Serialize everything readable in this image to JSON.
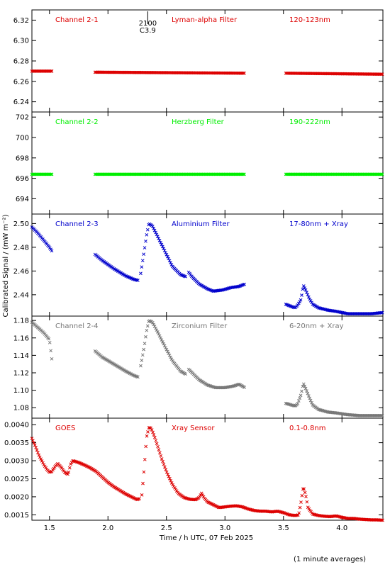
{
  "chart_data": {
    "type": "scatter",
    "x_axis": {
      "label": "Time / h UTC, 07 Feb 2025",
      "range": [
        1.35,
        4.35
      ],
      "ticks": [
        1.5,
        2.0,
        2.5,
        3.0,
        3.5,
        4.0
      ],
      "tick_labels": [
        "1.5",
        "2.0",
        "2.5",
        "3.0",
        "3.5",
        "4.0"
      ]
    },
    "y_axis_label": "Calibrated Signal / (mW m⁻²)",
    "footnote": "(1 minute averages)",
    "marker_annotation": {
      "x": 2.34,
      "lines": [
        "2100",
        "C3.9"
      ]
    },
    "panels": [
      {
        "channel": "Channel 2-1",
        "filter": "Lyman-alpha Filter",
        "band": "120-123nm",
        "color": "#dd0000",
        "ylim": [
          6.23,
          6.33
        ],
        "yticks": [
          6.24,
          6.26,
          6.28,
          6.3,
          6.32
        ],
        "ytick_labels": [
          "6.24",
          "6.26",
          "6.28",
          "6.30",
          "6.32"
        ],
        "segments": [
          {
            "points": [
              [
                1.35,
                6.27
              ],
              [
                1.52,
                6.27
              ]
            ]
          },
          {
            "points": [
              [
                1.89,
                6.269
              ],
              [
                3.17,
                6.268
              ]
            ]
          },
          {
            "points": [
              [
                3.52,
                6.268
              ],
              [
                4.35,
                6.267
              ]
            ]
          }
        ]
      },
      {
        "channel": "Channel 2-2",
        "filter": "Herzberg Filter",
        "band": "190-222nm",
        "color": "#00ee00",
        "ylim": [
          692.5,
          702.5
        ],
        "yticks": [
          694,
          696,
          698,
          700,
          702
        ],
        "ytick_labels": [
          "694",
          "696",
          "698",
          "700",
          "702"
        ],
        "segments": [
          {
            "points": [
              [
                1.35,
                696.4
              ],
              [
                1.52,
                696.4
              ]
            ]
          },
          {
            "points": [
              [
                1.89,
                696.4
              ],
              [
                3.17,
                696.4
              ]
            ]
          },
          {
            "points": [
              [
                3.52,
                696.4
              ],
              [
                4.35,
                696.4
              ]
            ]
          }
        ]
      },
      {
        "channel": "Channel 2-3",
        "filter": "Aluminium Filter",
        "band": "17-80nm + Xray",
        "color": "#0000cc",
        "ylim": [
          2.422,
          2.508
        ],
        "yticks": [
          2.44,
          2.46,
          2.48,
          2.5
        ],
        "ytick_labels": [
          "2.44",
          "2.46",
          "2.48",
          "2.50"
        ],
        "segments": [
          {
            "points": [
              [
                1.35,
                2.497
              ],
              [
                1.4,
                2.492
              ],
              [
                1.45,
                2.486
              ],
              [
                1.5,
                2.48
              ],
              [
                1.52,
                2.477
              ]
            ]
          },
          {
            "points": [
              [
                1.89,
                2.474
              ],
              [
                1.95,
                2.469
              ],
              [
                2.05,
                2.462
              ],
              [
                2.15,
                2.456
              ],
              [
                2.22,
                2.453
              ],
              [
                2.26,
                2.452
              ]
            ]
          },
          {
            "points": [
              [
                2.28,
                2.458
              ],
              [
                2.31,
                2.477
              ],
              [
                2.33,
                2.49
              ],
              [
                2.35,
                2.5
              ],
              [
                2.38,
                2.498
              ],
              [
                2.42,
                2.49
              ],
              [
                2.48,
                2.478
              ],
              [
                2.55,
                2.464
              ],
              [
                2.62,
                2.457
              ],
              [
                2.67,
                2.455
              ]
            ]
          },
          {
            "points": [
              [
                2.69,
                2.459
              ],
              [
                2.72,
                2.455
              ],
              [
                2.78,
                2.449
              ],
              [
                2.85,
                2.445
              ],
              [
                2.9,
                2.443
              ],
              [
                2.98,
                2.444
              ],
              [
                3.05,
                2.446
              ],
              [
                3.12,
                2.447
              ],
              [
                3.17,
                2.449
              ]
            ]
          },
          {
            "points": [
              [
                3.52,
                2.432
              ],
              [
                3.57,
                2.43
              ],
              [
                3.6,
                2.429
              ],
              [
                3.62,
                2.431
              ],
              [
                3.65,
                2.436
              ],
              [
                3.67,
                2.448
              ],
              [
                3.69,
                2.444
              ],
              [
                3.72,
                2.437
              ],
              [
                3.75,
                2.432
              ],
              [
                3.8,
                2.429
              ],
              [
                3.88,
                2.427
              ],
              [
                3.95,
                2.426
              ],
              [
                4.05,
                2.424
              ],
              [
                4.15,
                2.424
              ],
              [
                4.25,
                2.424
              ],
              [
                4.35,
                2.425
              ]
            ]
          }
        ]
      },
      {
        "channel": "Channel 2-4",
        "filter": "Zirconium Filter",
        "band": "6-20nm + Xray",
        "color": "#777777",
        "ylim": [
          1.068,
          1.185
        ],
        "yticks": [
          1.08,
          1.1,
          1.12,
          1.14,
          1.16,
          1.18
        ],
        "ytick_labels": [
          "1.08",
          "1.10",
          "1.12",
          "1.14",
          "1.16",
          "1.18"
        ],
        "segments": [
          {
            "points": [
              [
                1.35,
                1.178
              ],
              [
                1.4,
                1.172
              ],
              [
                1.45,
                1.166
              ],
              [
                1.5,
                1.158
              ],
              [
                1.52,
                1.136
              ]
            ]
          },
          {
            "points": [
              [
                1.89,
                1.145
              ],
              [
                1.95,
                1.138
              ],
              [
                2.05,
                1.13
              ],
              [
                2.15,
                1.122
              ],
              [
                2.22,
                1.117
              ],
              [
                2.26,
                1.115
              ]
            ]
          },
          {
            "points": [
              [
                2.28,
                1.128
              ],
              [
                2.31,
                1.15
              ],
              [
                2.33,
                1.168
              ],
              [
                2.35,
                1.18
              ],
              [
                2.38,
                1.178
              ],
              [
                2.42,
                1.168
              ],
              [
                2.48,
                1.152
              ],
              [
                2.55,
                1.134
              ],
              [
                2.62,
                1.122
              ],
              [
                2.67,
                1.118
              ]
            ]
          },
          {
            "points": [
              [
                2.69,
                1.124
              ],
              [
                2.72,
                1.12
              ],
              [
                2.78,
                1.112
              ],
              [
                2.85,
                1.106
              ],
              [
                2.92,
                1.103
              ],
              [
                3.0,
                1.103
              ],
              [
                3.08,
                1.105
              ],
              [
                3.12,
                1.107
              ],
              [
                3.17,
                1.103
              ]
            ]
          },
          {
            "points": [
              [
                3.52,
                1.085
              ],
              [
                3.57,
                1.083
              ],
              [
                3.6,
                1.082
              ],
              [
                3.62,
                1.084
              ],
              [
                3.65,
                1.095
              ],
              [
                3.67,
                1.108
              ],
              [
                3.69,
                1.102
              ],
              [
                3.72,
                1.092
              ],
              [
                3.75,
                1.083
              ],
              [
                3.8,
                1.078
              ],
              [
                3.88,
                1.075
              ],
              [
                3.95,
                1.074
              ],
              [
                4.05,
                1.072
              ],
              [
                4.15,
                1.071
              ],
              [
                4.25,
                1.071
              ],
              [
                4.35,
                1.071
              ]
            ]
          }
        ]
      },
      {
        "channel": "GOES",
        "filter": "Xray Sensor",
        "band": "0.1-0.8nm",
        "color": "#dd0000",
        "ylim": [
          0.00135,
          0.00418
        ],
        "yticks": [
          0.0015,
          0.002,
          0.0025,
          0.003,
          0.0035,
          0.004
        ],
        "ytick_labels": [
          "0.0015",
          "0.0020",
          "0.0025",
          "0.0030",
          "0.0035",
          "0.0040"
        ],
        "segments": [
          {
            "points": [
              [
                1.35,
                0.00362
              ],
              [
                1.38,
                0.0034
              ],
              [
                1.41,
                0.00315
              ],
              [
                1.45,
                0.0029
              ],
              [
                1.48,
                0.00275
              ],
              [
                1.5,
                0.00268
              ],
              [
                1.52,
                0.0027
              ],
              [
                1.55,
                0.00285
              ],
              [
                1.57,
                0.00292
              ],
              [
                1.6,
                0.00282
              ],
              [
                1.63,
                0.00268
              ],
              [
                1.66,
                0.00262
              ],
              [
                1.68,
                0.0029
              ],
              [
                1.7,
                0.003
              ],
              [
                1.75,
                0.00295
              ],
              [
                1.8,
                0.00288
              ],
              [
                1.85,
                0.0028
              ],
              [
                1.9,
                0.0027
              ],
              [
                1.95,
                0.00255
              ],
              [
                2.0,
                0.0024
              ],
              [
                2.05,
                0.00228
              ],
              [
                2.1,
                0.00218
              ],
              [
                2.15,
                0.00208
              ],
              [
                2.2,
                0.002
              ],
              [
                2.25,
                0.00192
              ],
              [
                2.27,
                0.00195
              ]
            ]
          },
          {
            "points": [
              [
                2.29,
                0.00205
              ],
              [
                2.31,
                0.0028
              ],
              [
                2.33,
                0.00365
              ],
              [
                2.35,
                0.00392
              ],
              [
                2.37,
                0.0039
              ],
              [
                2.4,
                0.00365
              ],
              [
                2.43,
                0.00335
              ],
              [
                2.46,
                0.00305
              ],
              [
                2.5,
                0.0027
              ],
              [
                2.55,
                0.00235
              ],
              [
                2.6,
                0.0021
              ],
              [
                2.65,
                0.00198
              ],
              [
                2.7,
                0.00193
              ],
              [
                2.75,
                0.00192
              ],
              [
                2.78,
                0.00198
              ],
              [
                2.8,
                0.0021
              ],
              [
                2.82,
                0.00198
              ],
              [
                2.85,
                0.00186
              ],
              [
                2.9,
                0.00178
              ],
              [
                2.95,
                0.0017
              ],
              [
                3.0,
                0.00172
              ],
              [
                3.05,
                0.00174
              ],
              [
                3.1,
                0.00175
              ],
              [
                3.15,
                0.00172
              ],
              [
                3.2,
                0.00166
              ],
              [
                3.25,
                0.00162
              ],
              [
                3.3,
                0.0016
              ],
              [
                3.35,
                0.0016
              ],
              [
                3.4,
                0.00158
              ],
              [
                3.45,
                0.0016
              ],
              [
                3.5,
                0.00156
              ],
              [
                3.55,
                0.0015
              ],
              [
                3.6,
                0.00148
              ],
              [
                3.63,
                0.0015
              ],
              [
                3.65,
                0.00185
              ],
              [
                3.67,
                0.00228
              ],
              [
                3.69,
                0.00205
              ],
              [
                3.71,
                0.0017
              ],
              [
                3.75,
                0.00152
              ],
              [
                3.8,
                0.00148
              ],
              [
                3.85,
                0.00146
              ],
              [
                3.9,
                0.00145
              ],
              [
                3.95,
                0.00147
              ],
              [
                4.0,
                0.00143
              ],
              [
                4.05,
                0.0014
              ],
              [
                4.1,
                0.0014
              ],
              [
                4.15,
                0.00138
              ],
              [
                4.2,
                0.00137
              ],
              [
                4.25,
                0.00136
              ],
              [
                4.3,
                0.00136
              ],
              [
                4.35,
                0.00135
              ]
            ]
          }
        ]
      }
    ]
  }
}
